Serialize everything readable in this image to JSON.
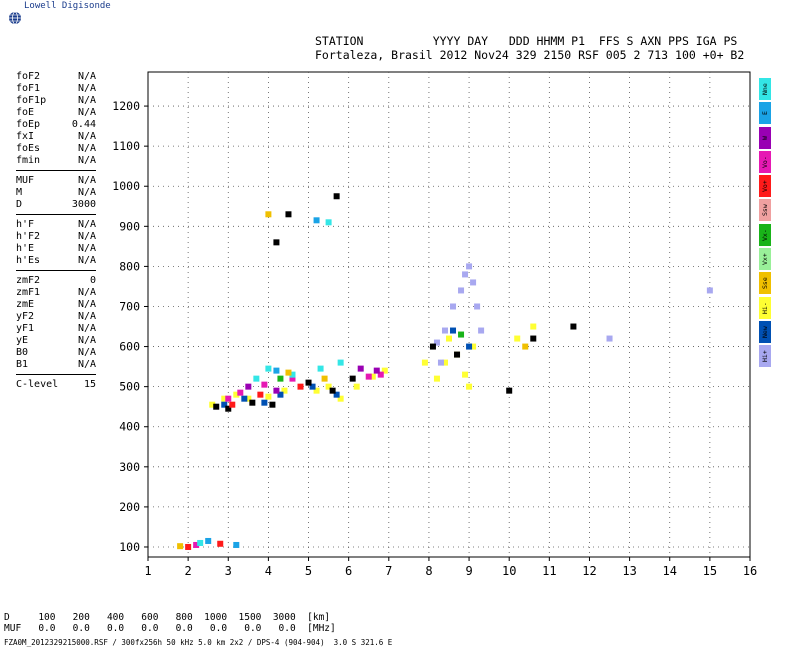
{
  "app": {
    "logo_text": "Lowell Digisonde",
    "logo_icon": "globe-icon"
  },
  "header": {
    "line1": "STATION          YYYY DAY   DDD HHMM P1  FFS S AXN PPS IGA PS",
    "line2": "Fortaleza, Brasil 2012 Nov24 329 2150 RSF 005 2 713 100 +0+ B2"
  },
  "params": {
    "group1": [
      {
        "name": "foF2",
        "value": "N/A"
      },
      {
        "name": "foF1",
        "value": "N/A"
      },
      {
        "name": "foF1p",
        "value": "N/A"
      },
      {
        "name": "foE",
        "value": "N/A"
      },
      {
        "name": "foEp",
        "value": "0.44"
      },
      {
        "name": "fxI",
        "value": "N/A"
      },
      {
        "name": "foEs",
        "value": "N/A"
      },
      {
        "name": "fmin",
        "value": "N/A"
      }
    ],
    "group2": [
      {
        "name": "MUF",
        "value": "N/A"
      },
      {
        "name": "M",
        "value": "N/A"
      },
      {
        "name": "D",
        "value": "3000"
      }
    ],
    "group3": [
      {
        "name": "h'F",
        "value": "N/A"
      },
      {
        "name": "h'F2",
        "value": "N/A"
      },
      {
        "name": "h'E",
        "value": "N/A"
      },
      {
        "name": "h'Es",
        "value": "N/A"
      }
    ],
    "group4": [
      {
        "name": "zmF2",
        "value": "0"
      },
      {
        "name": "zmF1",
        "value": "N/A"
      },
      {
        "name": "zmE",
        "value": "N/A"
      },
      {
        "name": "yF2",
        "value": "N/A"
      },
      {
        "name": "yF1",
        "value": "N/A"
      },
      {
        "name": "yE",
        "value": "N/A"
      },
      {
        "name": "B0",
        "value": "N/A"
      },
      {
        "name": "B1",
        "value": "N/A"
      }
    ],
    "clevel": {
      "name": "C-level",
      "value": "15"
    }
  },
  "legend": [
    {
      "label": "Nne",
      "color": "#33e6e6"
    },
    {
      "label": "E",
      "color": "#1aa3e6"
    },
    {
      "label": "W",
      "color": "#9900b3"
    },
    {
      "label": "Vo-",
      "color": "#e619b3"
    },
    {
      "label": "Vo+",
      "color": "#ff1a1a"
    },
    {
      "label": "Ssw",
      "color": "#f0a0a0"
    },
    {
      "label": "Vx-",
      "color": "#19b319"
    },
    {
      "label": "Vx+",
      "color": "#99f099"
    },
    {
      "label": "Sse",
      "color": "#f0c000"
    },
    {
      "label": "Hi-",
      "color": "#ffff33"
    },
    {
      "label": "New",
      "color": "#0050b3"
    },
    {
      "label": "Hi+",
      "color": "#a8a8f0"
    }
  ],
  "muf_table": {
    "row1": "D     100   200   400   600   800  1000  1500  3000  [km]",
    "row2": "MUF   0.0   0.0   0.0   0.0   0.0   0.0   0.0   0.0  [MHz]"
  },
  "footer": "FZA0M_2012329215000.RSF / 300fx256h 50 kHz 5.0 km 2x2 / DPS-4 (904-904)  3.0 S 321.6 E",
  "chart_data": {
    "type": "scatter",
    "title": "",
    "xlabel": "",
    "ylabel": "",
    "xlim": [
      1,
      16
    ],
    "ylim": [
      75,
      1285
    ],
    "x_ticks": [
      1,
      2,
      3,
      4,
      5,
      6,
      7,
      8,
      9,
      10,
      11,
      12,
      13,
      14,
      15,
      16
    ],
    "y_ticks": [
      100,
      200,
      300,
      400,
      500,
      600,
      700,
      800,
      900,
      1000,
      1100,
      1200
    ],
    "grid": true,
    "series": [
      {
        "color": "#ffff33",
        "points": [
          [
            2.6,
            455
          ],
          [
            2.9,
            470
          ],
          [
            3.2,
            480
          ],
          [
            3.5,
            470
          ],
          [
            4.0,
            475
          ],
          [
            4.4,
            490
          ],
          [
            5.2,
            490
          ],
          [
            5.5,
            500
          ],
          [
            5.8,
            470
          ],
          [
            6.2,
            500
          ],
          [
            6.6,
            525
          ],
          [
            6.9,
            540
          ],
          [
            7.9,
            560
          ],
          [
            8.2,
            520
          ],
          [
            8.4,
            560
          ],
          [
            8.5,
            620
          ],
          [
            8.7,
            580
          ],
          [
            8.9,
            530
          ],
          [
            9.0,
            500
          ],
          [
            9.1,
            600
          ],
          [
            10.2,
            620
          ],
          [
            10.6,
            650
          ]
        ]
      },
      {
        "color": "#a8a8f0",
        "points": [
          [
            8.2,
            610
          ],
          [
            8.4,
            640
          ],
          [
            8.6,
            700
          ],
          [
            8.8,
            740
          ],
          [
            8.9,
            780
          ],
          [
            9.0,
            800
          ],
          [
            9.1,
            760
          ],
          [
            9.2,
            700
          ],
          [
            9.3,
            640
          ],
          [
            8.3,
            560
          ],
          [
            12.5,
            620
          ],
          [
            15.0,
            740
          ]
        ]
      },
      {
        "color": "#0050b3",
        "points": [
          [
            2.9,
            455
          ],
          [
            3.4,
            470
          ],
          [
            3.9,
            460
          ],
          [
            4.3,
            480
          ],
          [
            5.1,
            500
          ],
          [
            5.7,
            480
          ],
          [
            8.6,
            640
          ],
          [
            9.0,
            600
          ]
        ]
      },
      {
        "color": "#000000",
        "points": [
          [
            2.7,
            450
          ],
          [
            3.0,
            445
          ],
          [
            3.6,
            460
          ],
          [
            4.1,
            455
          ],
          [
            5.0,
            510
          ],
          [
            5.6,
            490
          ],
          [
            6.1,
            520
          ],
          [
            8.1,
            600
          ],
          [
            8.7,
            580
          ],
          [
            10.0,
            490
          ],
          [
            10.6,
            620
          ],
          [
            11.6,
            650
          ],
          [
            5.7,
            975
          ],
          [
            4.2,
            860
          ],
          [
            4.5,
            930
          ]
        ]
      },
      {
        "color": "#e619b3",
        "points": [
          [
            3.0,
            470
          ],
          [
            3.3,
            485
          ],
          [
            3.9,
            505
          ],
          [
            6.5,
            525
          ],
          [
            6.8,
            530
          ],
          [
            2.2,
            105
          ],
          [
            4.6,
            520
          ]
        ]
      },
      {
        "color": "#33e6e6",
        "points": [
          [
            3.7,
            520
          ],
          [
            4.0,
            545
          ],
          [
            4.6,
            530
          ],
          [
            5.3,
            545
          ],
          [
            5.8,
            560
          ],
          [
            2.3,
            110
          ],
          [
            5.5,
            910
          ]
        ]
      },
      {
        "color": "#ff1a1a",
        "points": [
          [
            3.1,
            455
          ],
          [
            3.8,
            480
          ],
          [
            2.0,
            100
          ],
          [
            2.8,
            108
          ],
          [
            4.8,
            500
          ]
        ]
      },
      {
        "color": "#9900b3",
        "points": [
          [
            3.5,
            500
          ],
          [
            4.2,
            490
          ],
          [
            6.3,
            545
          ],
          [
            6.7,
            540
          ]
        ]
      },
      {
        "color": "#f0c000",
        "points": [
          [
            4.5,
            535
          ],
          [
            5.4,
            520
          ],
          [
            10.4,
            600
          ],
          [
            1.8,
            102
          ],
          [
            4.0,
            930
          ]
        ]
      },
      {
        "color": "#1aa3e6",
        "points": [
          [
            2.5,
            115
          ],
          [
            3.2,
            105
          ],
          [
            4.2,
            540
          ],
          [
            5.2,
            915
          ]
        ]
      },
      {
        "color": "#19b319",
        "points": [
          [
            4.3,
            520
          ],
          [
            8.8,
            630
          ]
        ]
      }
    ]
  }
}
